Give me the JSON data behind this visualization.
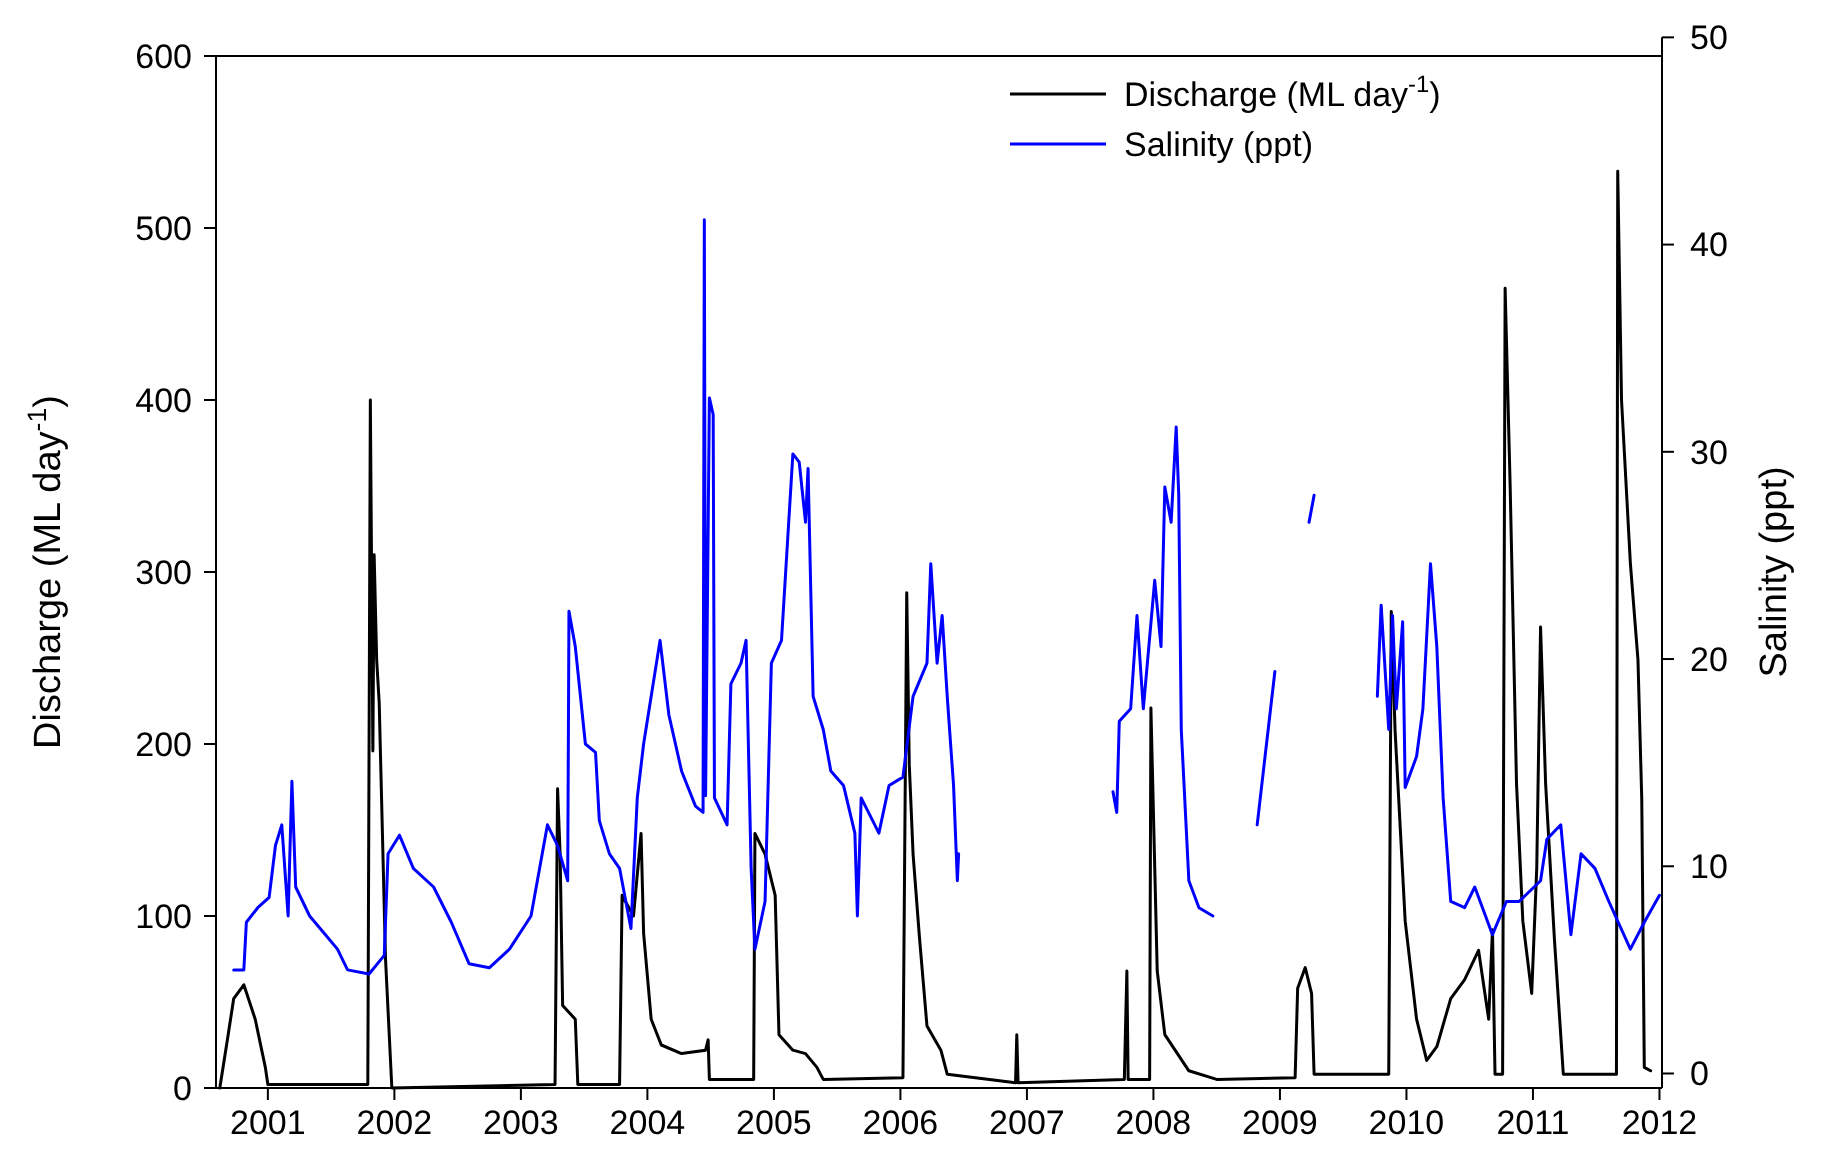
{
  "chart_data": {
    "type": "line",
    "xlabel": null,
    "ylabel": "Discharge (ML day$^{-1}$)",
    "y2label": "Salinity (ppt)",
    "xlim": [
      2000.59,
      2012.02
    ],
    "xticks": [
      2001,
      2002,
      2003,
      2004,
      2005,
      2006,
      2007,
      2008,
      2009,
      2010,
      2011,
      2012
    ],
    "ylim": [
      0,
      600
    ],
    "yticks": [
      0,
      100,
      200,
      300,
      400,
      500,
      600
    ],
    "y2lim": [
      -0.7,
      50
    ],
    "y2ticks": [
      0,
      10,
      20,
      30,
      40,
      50
    ],
    "legend": "top right",
    "grid": false,
    "line_style": "solid",
    "marker": "none",
    "series": [
      {
        "name": "Discharge (ML day$^{-1}$)",
        "color": "#000000",
        "x": [
          2000.62,
          2000.68,
          2000.73,
          2000.81,
          2000.9,
          2000.98,
          2001.0,
          2001.79,
          2001.81,
          2001.83,
          2001.84,
          2001.86,
          2001.88,
          2001.93,
          2001.98,
          2003.27,
          2003.29,
          2003.31,
          2003.33,
          2003.43,
          2003.45,
          2003.78,
          2003.8,
          2003.89,
          2003.95,
          2003.97,
          2004.03,
          2004.11,
          2004.27,
          2004.46,
          2004.48,
          2004.49,
          2004.84,
          2004.85,
          2004.93,
          2005.01,
          2005.04,
          2005.15,
          2005.25,
          2005.34,
          2005.39,
          2006.02,
          2006.05,
          2006.07,
          2006.1,
          2006.15,
          2006.21,
          2006.32,
          2006.37,
          2006.91,
          2006.92,
          2006.93,
          2007.77,
          2007.79,
          2007.8,
          2007.97,
          2007.98,
          2008.03,
          2008.09,
          2008.28,
          2008.5,
          2009.12,
          2009.14,
          2009.2,
          2009.25,
          2009.27,
          2009.86,
          2009.88,
          2009.91,
          2009.99,
          2010.08,
          2010.16,
          2010.24,
          2010.35,
          2010.46,
          2010.57,
          2010.65,
          2010.68,
          2010.7,
          2010.76,
          2010.78,
          2010.82,
          2010.87,
          2010.92,
          2010.99,
          2011.03,
          2011.06,
          2011.1,
          2011.17,
          2011.24,
          2011.66,
          2011.67,
          2011.7,
          2011.77,
          2011.83,
          2011.86,
          2011.88,
          2011.93
        ],
        "values": [
          0,
          28,
          52,
          60,
          40,
          12,
          2,
          2,
          400,
          196,
          310,
          249,
          224,
          75,
          0,
          2,
          174,
          136,
          48,
          40,
          2,
          2,
          112,
          100,
          148,
          90,
          40,
          25,
          20,
          22,
          28,
          5,
          5,
          148,
          136,
          112,
          31,
          22,
          20,
          12,
          5,
          6,
          288,
          188,
          136,
          88,
          36,
          22,
          8,
          3,
          31,
          3,
          5,
          68,
          5,
          5,
          221,
          68,
          31,
          10,
          5,
          6,
          58,
          70,
          55,
          8,
          8,
          277,
          208,
          97,
          40,
          16,
          24,
          52,
          63,
          80,
          40,
          92,
          8,
          8,
          465,
          349,
          177,
          97,
          55,
          128,
          268,
          177,
          86,
          8,
          8,
          533,
          400,
          305,
          249,
          168,
          12,
          10
        ]
      },
      {
        "name": "Salinity (ppt)",
        "color": "#0000ff",
        "axis": "y2",
        "x": [
          2000.73,
          2000.81,
          2000.83,
          2000.92,
          2001.01,
          2001.06,
          2001.11,
          2001.16,
          2001.19,
          2001.22,
          2001.33,
          2001.44,
          2001.55,
          2001.63,
          2001.8,
          2001.92,
          2001.95,
          2002.04,
          2002.15,
          2002.31,
          2002.45,
          2002.59,
          2002.75,
          2002.91,
          2003.08,
          2003.21,
          2003.29,
          2003.37,
          2003.38,
          2003.43,
          2003.51,
          2003.59,
          2003.62,
          2003.7,
          2003.78,
          2003.87,
          2003.92,
          2003.97,
          2004.03,
          2004.1,
          2004.17,
          2004.27,
          2004.38,
          2004.44,
          2004.45,
          2004.46,
          2004.49,
          2004.52,
          2004.53,
          2004.63,
          2004.66,
          2004.74,
          2004.78,
          2004.82,
          2004.85,
          2004.93,
          2004.98,
          2005.06,
          2005.15,
          2005.2,
          2005.25,
          2005.27,
          2005.31,
          2005.39,
          2005.45,
          2005.55,
          2005.64,
          2005.66,
          2005.69,
          2005.83,
          2005.91,
          2006.02,
          2006.1,
          2006.21,
          2006.24,
          2006.29,
          2006.33,
          2006.37,
          2006.42,
          2006.45,
          2006.46,
          2007.0,
          2007.68,
          2007.71,
          2007.73,
          2007.82,
          2007.87,
          2007.92,
          2008.01,
          2008.06,
          2008.09,
          2008.14,
          2008.18,
          2008.2,
          2008.22,
          2008.28,
          2008.36,
          2008.47,
          2008.6,
          2008.82,
          2008.96,
          2009.1,
          2009.23,
          2009.27,
          2009.5,
          2009.77,
          2009.8,
          2009.86,
          2009.89,
          2009.92,
          2009.97,
          2009.99,
          2010.08,
          2010.13,
          2010.19,
          2010.24,
          2010.29,
          2010.35,
          2010.46,
          2010.54,
          2010.68,
          2010.79,
          2010.89,
          2011.06,
          2011.11,
          2011.22,
          2011.3,
          2011.38,
          2011.49,
          2011.6,
          2011.77,
          2011.88,
          2012.0
        ],
        "values": [
          5.0,
          5.0,
          7.3,
          8.0,
          8.5,
          11,
          12,
          7.6,
          14.1,
          9,
          7.6,
          6.8,
          6.0,
          5.0,
          4.8,
          5.7,
          10.6,
          11.5,
          9.9,
          9,
          7.3,
          5.3,
          5.1,
          6,
          7.6,
          12,
          11,
          9.3,
          22.3,
          20.6,
          15.9,
          15.5,
          12.2,
          10.6,
          9.9,
          7.0,
          13.3,
          15.9,
          18.2,
          20.9,
          17.3,
          14.6,
          12.9,
          12.6,
          41.2,
          13.4,
          32.6,
          31.8,
          13.3,
          12,
          18.8,
          19.8,
          20.9,
          9.9,
          6.0,
          8.3,
          19.8,
          20.9,
          29.9,
          29.5,
          26.6,
          29.2,
          18.2,
          16.6,
          14.6,
          13.9,
          11.6,
          7.6,
          13.3,
          11.6,
          13.9,
          14.3,
          18.2,
          19.8,
          24.6,
          19.8,
          22.1,
          18.2,
          13.9,
          9.3,
          10.6,
          null,
          13.6,
          12.6,
          17,
          17.6,
          22.1,
          17.6,
          23.8,
          20.6,
          28.3,
          26.6,
          31.2,
          27.9,
          16.6,
          9.3,
          8.0,
          7.6,
          null,
          12,
          19.4,
          null,
          26.6,
          27.9,
          null,
          18.2,
          22.6,
          16.6,
          22.1,
          17.6,
          21.8,
          13.8,
          15.3,
          17.6,
          24.6,
          20.6,
          13.3,
          8.3,
          8.0,
          9,
          6.7,
          8.3,
          8.3,
          9.3,
          11.3,
          12,
          6.7,
          10.6,
          9.9,
          8.3,
          6,
          7.3,
          8.6
        ]
      }
    ]
  }
}
